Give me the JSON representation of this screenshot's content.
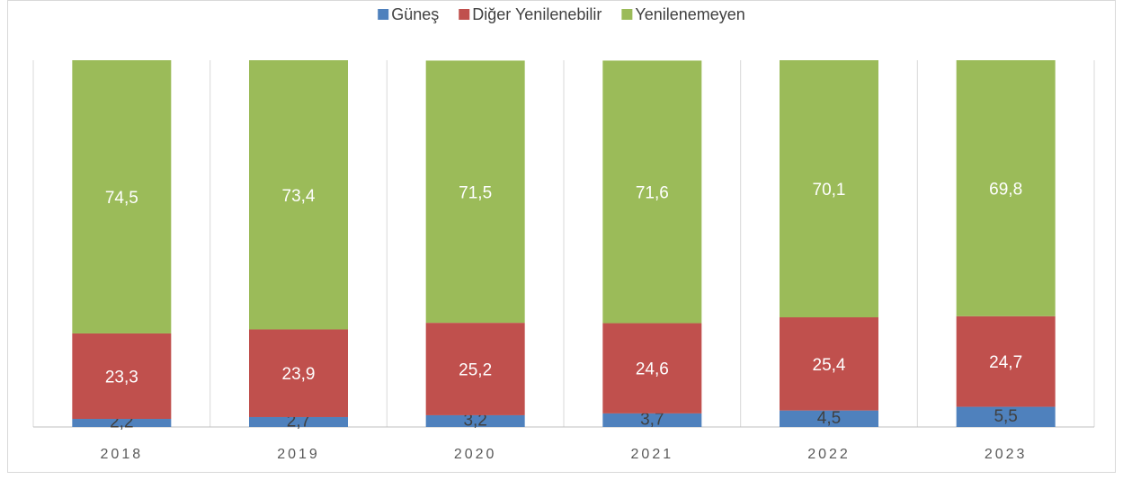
{
  "chart_data": {
    "type": "stacked_bar",
    "categories": [
      "2018",
      "2019",
      "2020",
      "2021",
      "2022",
      "2023"
    ],
    "series": [
      {
        "name": "Güneş",
        "color": "#4f81bd",
        "values": [
          2.2,
          2.7,
          3.2,
          3.7,
          4.5,
          5.5
        ],
        "value_labels": [
          "2,2",
          "2,7",
          "3,2",
          "3,7",
          "4,5",
          "5,5"
        ]
      },
      {
        "name": "Diğer Yenilenebilir",
        "color": "#c0504d",
        "values": [
          23.3,
          23.9,
          25.2,
          24.6,
          25.4,
          24.7
        ],
        "value_labels": [
          "23,3",
          "23,9",
          "25,2",
          "24,6",
          "25,4",
          "24,7"
        ]
      },
      {
        "name": "Yenilenemeyen",
        "color": "#9bbb59",
        "values": [
          74.5,
          73.4,
          71.5,
          71.6,
          70.1,
          69.8
        ],
        "value_labels": [
          "74,5",
          "73,4",
          "71,5",
          "71,6",
          "70,1",
          "69,8"
        ]
      }
    ],
    "ylim": [
      0,
      100
    ],
    "legend": "top"
  }
}
